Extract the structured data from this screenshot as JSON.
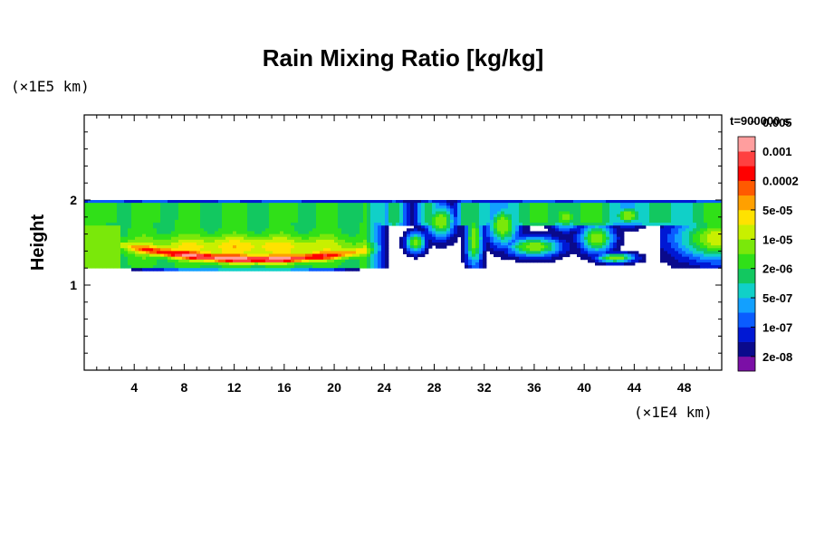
{
  "chart_data": {
    "type": "heatmap",
    "title": "Rain Mixing Ratio [kg/kg]",
    "ylabel": "Height",
    "y_multiplier": "(×1E5 km)",
    "x_multiplier": "(×1E4 km)",
    "time_label": "t=900000 s",
    "xlim": [
      0,
      51
    ],
    "ylim": [
      0,
      3
    ],
    "x_ticks": [
      {
        "value": 4,
        "label": "4"
      },
      {
        "value": 8,
        "label": "8"
      },
      {
        "value": 12,
        "label": "12"
      },
      {
        "value": 16,
        "label": "16"
      },
      {
        "value": 20,
        "label": "20"
      },
      {
        "value": 24,
        "label": "24"
      },
      {
        "value": 28,
        "label": "28"
      },
      {
        "value": 32,
        "label": "32"
      },
      {
        "value": 36,
        "label": "36"
      },
      {
        "value": 40,
        "label": "40"
      },
      {
        "value": 44,
        "label": "44"
      },
      {
        "value": 48,
        "label": "48"
      }
    ],
    "y_ticks": [
      {
        "value": 1,
        "label": "1"
      },
      {
        "value": 2,
        "label": "2"
      }
    ],
    "colorbar": {
      "colors": [
        "#7b0fa6",
        "#0a0a8c",
        "#0018d4",
        "#0a5cff",
        "#12a0ff",
        "#10d0c8",
        "#12c860",
        "#30e018",
        "#7ae80a",
        "#c8f000",
        "#ffe200",
        "#ffa000",
        "#ff5a00",
        "#ff0000",
        "#ff4040",
        "#ff9e9e"
      ],
      "tick_labels": [
        "2e-08",
        "1e-07",
        "5e-07",
        "2e-06",
        "1e-05",
        "5e-05",
        "0.0002",
        "0.001",
        "0.005"
      ]
    },
    "features": [
      {
        "name": "main layer",
        "x_range": [
          0,
          24
        ],
        "y_range": [
          1.1,
          2.0
        ],
        "peak_level": 14,
        "peak_at": {
          "x": 14,
          "y": 1.3
        }
      },
      {
        "name": "upper band",
        "x_range": [
          0,
          51
        ],
        "y_range": [
          1.7,
          2.0
        ],
        "peak_level": 7
      },
      {
        "name": "broken cells",
        "x_range": [
          24,
          46
        ],
        "y_range": [
          1.2,
          2.0
        ],
        "peak_level": 8
      },
      {
        "name": "right cell",
        "x_range": [
          46,
          51
        ],
        "y_range": [
          1.3,
          1.9
        ],
        "peak_level": 9
      }
    ]
  }
}
